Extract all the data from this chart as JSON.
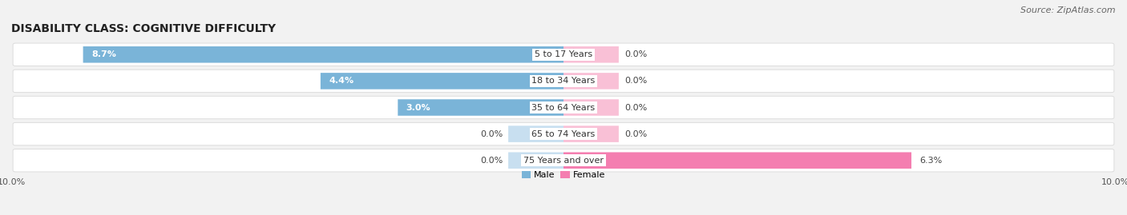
{
  "title": "DISABILITY CLASS: COGNITIVE DIFFICULTY",
  "source": "Source: ZipAtlas.com",
  "categories": [
    "5 to 17 Years",
    "18 to 34 Years",
    "35 to 64 Years",
    "65 to 74 Years",
    "75 Years and over"
  ],
  "male_values": [
    8.7,
    4.4,
    3.0,
    0.0,
    0.0
  ],
  "female_values": [
    0.0,
    0.0,
    0.0,
    0.0,
    6.3
  ],
  "male_color": "#7ab4d8",
  "male_color_light": "#c8dff0",
  "female_color": "#f47eb0",
  "female_color_light": "#f9c0d6",
  "max_value": 10.0,
  "background_color": "#f2f2f2",
  "row_bg_color": "#ffffff",
  "row_edge_color": "#d8d8d8",
  "title_fontsize": 10,
  "label_fontsize": 8,
  "tick_fontsize": 8,
  "source_fontsize": 8,
  "legend_fontsize": 8
}
